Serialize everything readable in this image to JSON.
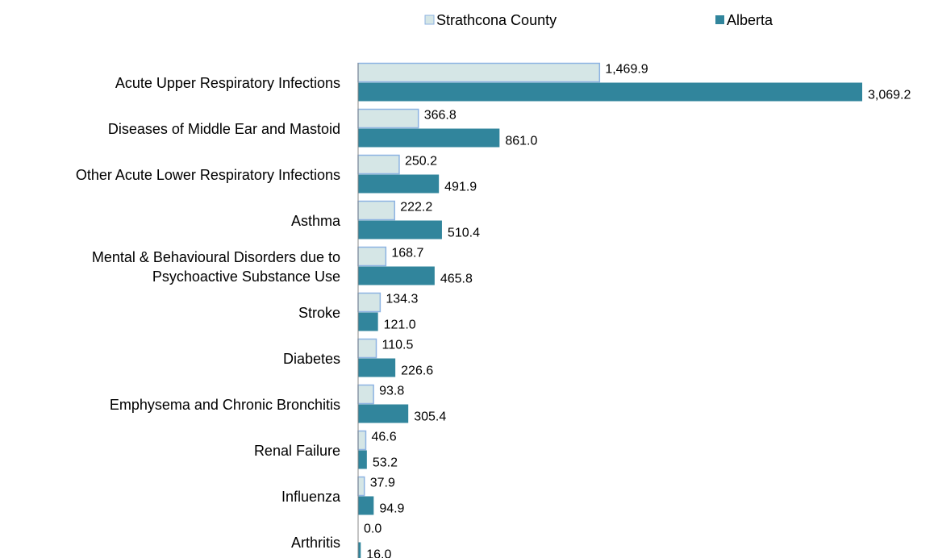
{
  "chart_data": {
    "type": "bar",
    "orientation": "horizontal",
    "categories": [
      "Acute Upper Respiratory Infections",
      "Diseases of Middle Ear and Mastoid",
      "Other Acute Lower Respiratory Infections",
      "Asthma",
      "Mental & Behavioural Disorders due to Psychoactive Substance Use",
      "Stroke",
      "Diabetes",
      "Emphysema and Chronic Bronchitis",
      "Renal Failure",
      "Influenza",
      "Arthritis"
    ],
    "series": [
      {
        "name": "Strathcona County",
        "color": "#d5e6e6",
        "edge_color": "#8db3e2",
        "values": [
          1469.9,
          366.8,
          250.2,
          222.2,
          168.7,
          134.3,
          110.5,
          93.8,
          46.6,
          37.9,
          0
        ],
        "value_labels": [
          "1,469.9",
          "366.8",
          "250.2",
          "222.2",
          "168.7",
          "134.3",
          "110.5",
          "93.8",
          "46.6",
          "37.9",
          "0.0"
        ]
      },
      {
        "name": "Alberta",
        "color": "#31859c",
        "values": [
          3069.2,
          861,
          491.9,
          510.4,
          465.8,
          121,
          226.6,
          305.4,
          53.2,
          94.9,
          16
        ],
        "value_labels": [
          "3,069.2",
          "861.0",
          "491.9",
          "510.4",
          "465.8",
          "121.0",
          "226.6",
          "305.4",
          "53.2",
          "94.9",
          "16.0"
        ]
      }
    ],
    "legend": "top"
  }
}
